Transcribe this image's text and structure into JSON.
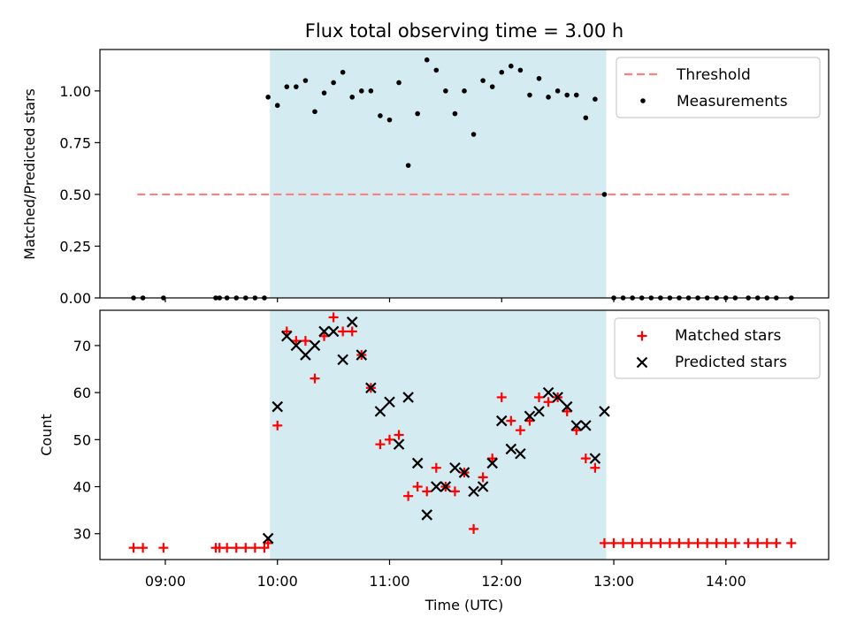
{
  "chart_data": [
    {
      "type": "scatter",
      "title": "Flux total observing time = 3.00 h",
      "xlabel": "",
      "ylabel": "Matched/Predicted stars",
      "xlim": [
        "08:25",
        "14:55"
      ],
      "ylim": [
        0,
        1.2
      ],
      "yticks": [
        "0.00",
        "0.25",
        "0.50",
        "0.75",
        "1.00"
      ],
      "grid": false,
      "legend_position": "top-right",
      "shaded_region": {
        "start": "09:56",
        "end": "12:56",
        "color": "#add8e6"
      },
      "threshold": {
        "name": "Threshold",
        "value": 0.5,
        "x": [
          "08:45",
          "14:35"
        ],
        "color": "#ff7f7f",
        "style": "dashed"
      },
      "series": [
        {
          "name": "Measurements",
          "color": "#000000",
          "marker": "dot",
          "points": [
            [
              "08:43",
              0.0
            ],
            [
              "08:48",
              0.0
            ],
            [
              "08:59",
              0.0
            ],
            [
              "09:27",
              0.0
            ],
            [
              "09:29",
              0.0
            ],
            [
              "09:33",
              0.0
            ],
            [
              "09:38",
              0.0
            ],
            [
              "09:43",
              0.0
            ],
            [
              "09:48",
              0.0
            ],
            [
              "09:53",
              0.0
            ],
            [
              "09:55",
              0.97
            ],
            [
              "10:00",
              0.93
            ],
            [
              "10:05",
              1.02
            ],
            [
              "10:10",
              1.02
            ],
            [
              "10:15",
              1.05
            ],
            [
              "10:20",
              0.9
            ],
            [
              "10:25",
              0.99
            ],
            [
              "10:30",
              1.04
            ],
            [
              "10:35",
              1.09
            ],
            [
              "10:40",
              0.97
            ],
            [
              "10:45",
              1.0
            ],
            [
              "10:50",
              1.0
            ],
            [
              "10:55",
              0.88
            ],
            [
              "11:00",
              0.86
            ],
            [
              "11:05",
              1.04
            ],
            [
              "11:10",
              0.64
            ],
            [
              "11:15",
              0.89
            ],
            [
              "11:20",
              1.15
            ],
            [
              "11:25",
              1.1
            ],
            [
              "11:30",
              1.0
            ],
            [
              "11:35",
              0.89
            ],
            [
              "11:40",
              1.0
            ],
            [
              "11:45",
              0.79
            ],
            [
              "11:50",
              1.05
            ],
            [
              "11:55",
              1.02
            ],
            [
              "12:00",
              1.09
            ],
            [
              "12:05",
              1.12
            ],
            [
              "12:10",
              1.1
            ],
            [
              "12:15",
              0.98
            ],
            [
              "12:20",
              1.06
            ],
            [
              "12:25",
              0.97
            ],
            [
              "12:30",
              1.0
            ],
            [
              "12:35",
              0.98
            ],
            [
              "12:40",
              0.98
            ],
            [
              "12:45",
              0.87
            ],
            [
              "12:50",
              0.96
            ],
            [
              "12:55",
              0.5
            ],
            [
              "13:00",
              0.0
            ],
            [
              "13:05",
              0.0
            ],
            [
              "13:10",
              0.0
            ],
            [
              "13:15",
              0.0
            ],
            [
              "13:20",
              0.0
            ],
            [
              "13:25",
              0.0
            ],
            [
              "13:30",
              0.0
            ],
            [
              "13:35",
              0.0
            ],
            [
              "13:40",
              0.0
            ],
            [
              "13:45",
              0.0
            ],
            [
              "13:50",
              0.0
            ],
            [
              "13:55",
              0.0
            ],
            [
              "14:00",
              0.0
            ],
            [
              "14:05",
              0.0
            ],
            [
              "14:12",
              0.0
            ],
            [
              "14:17",
              0.0
            ],
            [
              "14:22",
              0.0
            ],
            [
              "14:27",
              0.0
            ],
            [
              "14:35",
              0.0
            ]
          ]
        }
      ]
    },
    {
      "type": "scatter",
      "title": "",
      "xlabel": "Time (UTC)",
      "ylabel": "Count",
      "xlim": [
        "08:25",
        "14:55"
      ],
      "ylim": [
        24.5,
        77.5
      ],
      "xticks": [
        "09:00",
        "10:00",
        "11:00",
        "12:00",
        "13:00",
        "14:00"
      ],
      "yticks": [
        "30",
        "40",
        "50",
        "60",
        "70"
      ],
      "grid": false,
      "legend_position": "top-right",
      "shaded_region": {
        "start": "09:56",
        "end": "12:56",
        "color": "#add8e6"
      },
      "series": [
        {
          "name": "Matched stars",
          "color": "#ff0000",
          "marker": "plus",
          "points": [
            [
              "08:43",
              27
            ],
            [
              "08:48",
              27
            ],
            [
              "08:59",
              27
            ],
            [
              "09:27",
              27
            ],
            [
              "09:29",
              27
            ],
            [
              "09:33",
              27
            ],
            [
              "09:38",
              27
            ],
            [
              "09:43",
              27
            ],
            [
              "09:48",
              27
            ],
            [
              "09:53",
              27
            ],
            [
              "09:55",
              28
            ],
            [
              "10:00",
              53
            ],
            [
              "10:05",
              73
            ],
            [
              "10:10",
              71
            ],
            [
              "10:15",
              71
            ],
            [
              "10:20",
              63
            ],
            [
              "10:25",
              72
            ],
            [
              "10:30",
              76
            ],
            [
              "10:35",
              73
            ],
            [
              "10:40",
              73
            ],
            [
              "10:45",
              68
            ],
            [
              "10:50",
              61
            ],
            [
              "10:55",
              49
            ],
            [
              "11:00",
              50
            ],
            [
              "11:05",
              51
            ],
            [
              "11:10",
              38
            ],
            [
              "11:15",
              40
            ],
            [
              "11:20",
              39
            ],
            [
              "11:25",
              44
            ],
            [
              "11:30",
              40
            ],
            [
              "11:35",
              39
            ],
            [
              "11:40",
              43
            ],
            [
              "11:45",
              31
            ],
            [
              "11:50",
              42
            ],
            [
              "11:55",
              46
            ],
            [
              "12:00",
              59
            ],
            [
              "12:05",
              54
            ],
            [
              "12:10",
              52
            ],
            [
              "12:15",
              54
            ],
            [
              "12:20",
              59
            ],
            [
              "12:25",
              58
            ],
            [
              "12:30",
              59
            ],
            [
              "12:35",
              56
            ],
            [
              "12:40",
              52
            ],
            [
              "12:45",
              46
            ],
            [
              "12:50",
              44
            ],
            [
              "12:55",
              28
            ],
            [
              "13:00",
              28
            ],
            [
              "13:05",
              28
            ],
            [
              "13:10",
              28
            ],
            [
              "13:15",
              28
            ],
            [
              "13:20",
              28
            ],
            [
              "13:25",
              28
            ],
            [
              "13:30",
              28
            ],
            [
              "13:35",
              28
            ],
            [
              "13:40",
              28
            ],
            [
              "13:45",
              28
            ],
            [
              "13:50",
              28
            ],
            [
              "13:55",
              28
            ],
            [
              "14:00",
              28
            ],
            [
              "14:05",
              28
            ],
            [
              "14:12",
              28
            ],
            [
              "14:17",
              28
            ],
            [
              "14:22",
              28
            ],
            [
              "14:27",
              28
            ],
            [
              "14:35",
              28
            ]
          ]
        },
        {
          "name": "Predicted stars",
          "color": "#000000",
          "marker": "x",
          "points": [
            [
              "09:55",
              29
            ],
            [
              "10:00",
              57
            ],
            [
              "10:05",
              72
            ],
            [
              "10:10",
              70
            ],
            [
              "10:15",
              68
            ],
            [
              "10:20",
              70
            ],
            [
              "10:25",
              73
            ],
            [
              "10:30",
              73
            ],
            [
              "10:35",
              67
            ],
            [
              "10:40",
              75
            ],
            [
              "10:45",
              68
            ],
            [
              "10:50",
              61
            ],
            [
              "10:55",
              56
            ],
            [
              "11:00",
              58
            ],
            [
              "11:05",
              49
            ],
            [
              "11:10",
              59
            ],
            [
              "11:15",
              45
            ],
            [
              "11:20",
              34
            ],
            [
              "11:25",
              40
            ],
            [
              "11:30",
              40
            ],
            [
              "11:35",
              44
            ],
            [
              "11:40",
              43
            ],
            [
              "11:45",
              39
            ],
            [
              "11:50",
              40
            ],
            [
              "11:55",
              45
            ],
            [
              "12:00",
              54
            ],
            [
              "12:05",
              48
            ],
            [
              "12:10",
              47
            ],
            [
              "12:15",
              55
            ],
            [
              "12:20",
              56
            ],
            [
              "12:25",
              60
            ],
            [
              "12:30",
              59
            ],
            [
              "12:35",
              57
            ],
            [
              "12:40",
              53
            ],
            [
              "12:45",
              53
            ],
            [
              "12:50",
              46
            ],
            [
              "12:55",
              56
            ]
          ]
        }
      ]
    }
  ]
}
